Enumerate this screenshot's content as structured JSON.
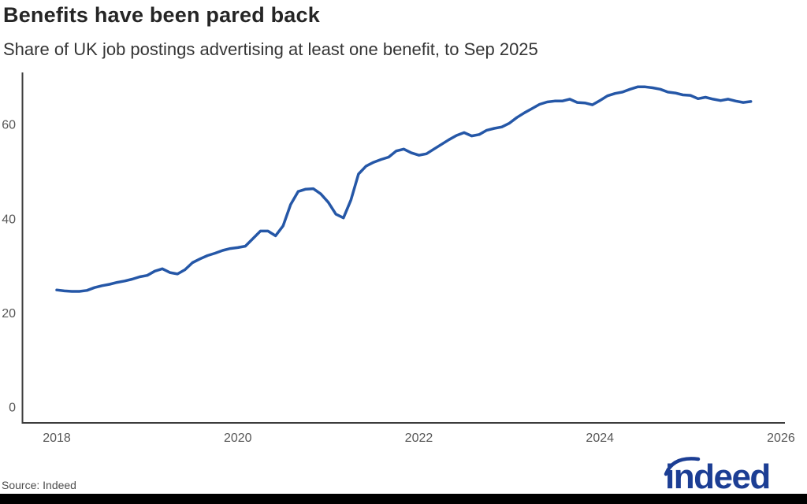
{
  "header": {
    "title": "Benefits have been pared back",
    "subtitle": "Share of UK job postings advertising at least one benefit, to Sep 2025"
  },
  "footer": {
    "source": "Source: Indeed",
    "logo_text": "indeed"
  },
  "colors": {
    "line": "#2557a7",
    "axis": "#3c3c3c",
    "tick_label": "#575757",
    "title": "#252525",
    "subtitle": "#353535",
    "source": "#4d4d4d",
    "logo": "#1c3e94",
    "bottom_bar": "#000000",
    "background": "#ffffff"
  },
  "chart_data": {
    "type": "line",
    "title": "Benefits have been pared back",
    "subtitle": "Share of UK job postings advertising at least one benefit, to Sep 2025",
    "xlabel": "",
    "ylabel": "",
    "frequency": "monthly",
    "x_start": "2018-01",
    "x_end": "2025-09",
    "x_ticks": [
      2018,
      2020,
      2022,
      2024,
      2026
    ],
    "y_ticks": [
      0,
      20,
      40,
      60
    ],
    "xlim": [
      2018,
      2026
    ],
    "ylim": [
      0,
      71
    ],
    "grid": false,
    "legend": "none",
    "series": [
      {
        "name": "Share of UK job postings advertising at least one benefit (%)",
        "values": [
          24.9,
          24.7,
          24.6,
          24.6,
          24.8,
          25.4,
          25.8,
          26.1,
          26.5,
          26.8,
          27.2,
          27.7,
          28.0,
          28.9,
          29.4,
          28.6,
          28.3,
          29.2,
          30.7,
          31.5,
          32.2,
          32.7,
          33.3,
          33.7,
          33.9,
          34.2,
          35.8,
          37.4,
          37.4,
          36.4,
          38.5,
          43.0,
          45.8,
          46.3,
          46.4,
          45.3,
          43.5,
          41.0,
          40.2,
          44.0,
          49.5,
          51.2,
          52.0,
          52.6,
          53.1,
          54.4,
          54.8,
          54.0,
          53.5,
          53.8,
          54.8,
          55.8,
          56.8,
          57.7,
          58.3,
          57.6,
          57.9,
          58.8,
          59.2,
          59.5,
          60.3,
          61.5,
          62.5,
          63.4,
          64.3,
          64.8,
          65.0,
          65.0,
          65.4,
          64.7,
          64.6,
          64.2,
          65.1,
          66.1,
          66.6,
          66.9,
          67.5,
          68.0,
          68.0,
          67.8,
          67.5,
          66.9,
          66.7,
          66.3,
          66.2,
          65.5,
          65.8,
          65.4,
          65.1,
          65.4,
          65.0,
          64.7,
          64.9
        ]
      }
    ]
  }
}
